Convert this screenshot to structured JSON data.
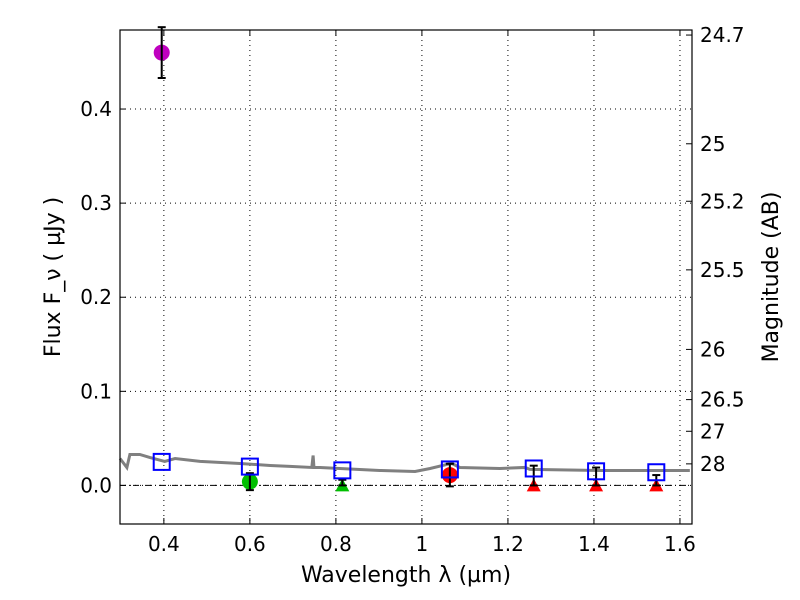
{
  "chart_data": {
    "type": "scatter",
    "xlabel": "Wavelength  λ (µm)",
    "ylabel": "Flux  F_ν  ( µJy )",
    "ylabel_right": "Magnitude (AB)",
    "xlim": [
      0.298,
      1.628
    ],
    "ylim": [
      -0.041,
      0.484
    ],
    "grid": true,
    "xticks": [
      {
        "v": 0.4,
        "label": "0.4"
      },
      {
        "v": 0.6,
        "label": "0.6"
      },
      {
        "v": 0.8,
        "label": "0.8"
      },
      {
        "v": 1.0,
        "label": "1"
      },
      {
        "v": 1.2,
        "label": "1.2"
      },
      {
        "v": 1.4,
        "label": "1.4"
      },
      {
        "v": 1.6,
        "label": "1.6"
      }
    ],
    "yticks": [
      {
        "v": 0.0,
        "label": "0.0"
      },
      {
        "v": 0.1,
        "label": "0.1"
      },
      {
        "v": 0.2,
        "label": "0.2"
      },
      {
        "v": 0.3,
        "label": "0.3"
      },
      {
        "v": 0.4,
        "label": "0.4"
      }
    ],
    "mag_ticks": [
      {
        "v": 24.7,
        "label": "24.7"
      },
      {
        "v": 25,
        "label": "25"
      },
      {
        "v": 25.2,
        "label": "25.2"
      },
      {
        "v": 25.5,
        "label": "25.5"
      },
      {
        "v": 26,
        "label": "26"
      },
      {
        "v": 26.5,
        "label": "26.5"
      },
      {
        "v": 27,
        "label": "27"
      },
      {
        "v": 28,
        "label": "28"
      }
    ],
    "sed_model": {
      "color": "#808080",
      "x": [
        0.298,
        0.314,
        0.321,
        0.344,
        0.367,
        0.402,
        0.426,
        0.484,
        0.577,
        0.647,
        0.693,
        0.744,
        0.747,
        0.749,
        0.763,
        0.902,
        0.984,
        1.019,
        1.058,
        1.07,
        1.088,
        1.181,
        1.24,
        1.251,
        1.414,
        1.623
      ],
      "y": [
        0.0286,
        0.019,
        0.0329,
        0.0329,
        0.0297,
        0.0255,
        0.0286,
        0.0255,
        0.0233,
        0.0212,
        0.0202,
        0.0191,
        0.0318,
        0.0191,
        0.0191,
        0.0159,
        0.0148,
        0.018,
        0.0223,
        0.0233,
        0.0191,
        0.018,
        0.0191,
        0.017,
        0.0159,
        0.0159
      ]
    },
    "model_photometry": {
      "color": "#0000ff",
      "x": [
        0.395,
        0.6,
        0.815,
        1.065,
        1.26,
        1.405,
        1.545
      ],
      "y": [
        0.025,
        0.02,
        0.016,
        0.017,
        0.018,
        0.015,
        0.014
      ]
    },
    "detections": [
      {
        "x": 0.395,
        "y": 0.46,
        "err": 0.027,
        "color": "#bf00bf"
      },
      {
        "x": 0.6,
        "y": 0.004,
        "err": 0.009,
        "color": "#00bf00"
      },
      {
        "x": 1.065,
        "y": 0.011,
        "err": 0.012,
        "color": "#ff0000"
      }
    ],
    "upper_limits": [
      {
        "x": 0.815,
        "y": 0.0,
        "err": 0.006,
        "color": "#00bf00"
      },
      {
        "x": 1.26,
        "y": 0.0,
        "err": 0.021,
        "color": "#ff0000"
      },
      {
        "x": 1.405,
        "y": 0.0,
        "err": 0.019,
        "color": "#ff0000"
      },
      {
        "x": 1.545,
        "y": 0.0,
        "err": 0.011,
        "color": "#ff0000"
      }
    ]
  }
}
